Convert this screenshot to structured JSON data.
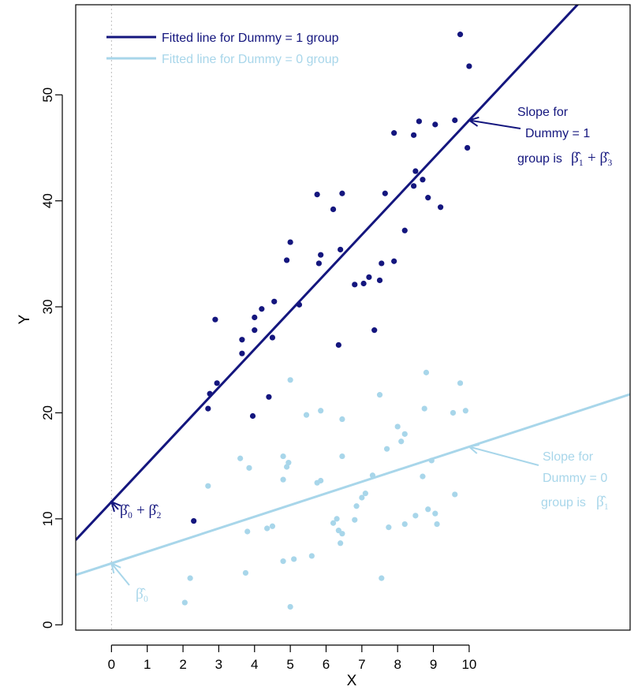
{
  "chart_data": {
    "type": "scatter",
    "title": "",
    "xlabel": "X",
    "ylabel": "Y",
    "xlim": [
      -1,
      14.5
    ],
    "ylim": [
      -0.5,
      58.5
    ],
    "x_ticks": [
      0,
      1,
      2,
      3,
      4,
      5,
      6,
      7,
      8,
      9,
      10
    ],
    "y_ticks": [
      0,
      10,
      20,
      30,
      40,
      50
    ],
    "grid": false,
    "legend_position": "top-left",
    "colors": {
      "group1": "#14167e",
      "group0": "#a8d6ea",
      "zero_line": "#bdbdbd"
    },
    "legend": [
      {
        "label": "Fitted line for Dummy = 1 group",
        "color": "#14167e"
      },
      {
        "label": "Fitted line for Dummy = 0 group",
        "color": "#a8d6ea"
      }
    ],
    "series": [
      {
        "name": "Dummy = 1",
        "color": "#14167e",
        "points": [
          [
            2.3,
            9.8
          ],
          [
            2.7,
            20.4
          ],
          [
            2.75,
            21.8
          ],
          [
            2.9,
            28.8
          ],
          [
            2.95,
            22.8
          ],
          [
            3.65,
            25.6
          ],
          [
            3.65,
            26.9
          ],
          [
            3.95,
            19.7
          ],
          [
            4.0,
            27.8
          ],
          [
            4.0,
            29.0
          ],
          [
            4.2,
            29.8
          ],
          [
            4.4,
            21.5
          ],
          [
            4.5,
            27.1
          ],
          [
            4.55,
            30.5
          ],
          [
            4.9,
            34.4
          ],
          [
            5.0,
            36.1
          ],
          [
            5.25,
            30.2
          ],
          [
            5.75,
            40.6
          ],
          [
            5.8,
            34.1
          ],
          [
            5.85,
            34.9
          ],
          [
            6.2,
            39.2
          ],
          [
            6.35,
            26.4
          ],
          [
            6.4,
            35.4
          ],
          [
            6.45,
            40.7
          ],
          [
            6.8,
            32.1
          ],
          [
            7.05,
            32.2
          ],
          [
            7.2,
            32.8
          ],
          [
            7.35,
            27.8
          ],
          [
            7.5,
            32.5
          ],
          [
            7.55,
            34.1
          ],
          [
            7.65,
            40.7
          ],
          [
            7.9,
            34.3
          ],
          [
            7.9,
            46.4
          ],
          [
            8.2,
            37.2
          ],
          [
            8.45,
            46.2
          ],
          [
            8.45,
            41.4
          ],
          [
            8.5,
            42.8
          ],
          [
            8.6,
            47.5
          ],
          [
            8.7,
            42.0
          ],
          [
            8.85,
            40.3
          ],
          [
            9.05,
            47.2
          ],
          [
            9.2,
            39.4
          ],
          [
            9.6,
            47.6
          ],
          [
            9.75,
            55.7
          ],
          [
            9.95,
            45.0
          ],
          [
            10.0,
            52.7
          ]
        ],
        "fit": {
          "intercept": 11.6,
          "slope": 3.6
        }
      },
      {
        "name": "Dummy = 0",
        "color": "#a8d6ea",
        "points": [
          [
            2.05,
            2.1
          ],
          [
            2.2,
            4.4
          ],
          [
            2.7,
            13.1
          ],
          [
            3.6,
            15.7
          ],
          [
            3.75,
            4.9
          ],
          [
            3.8,
            8.8
          ],
          [
            3.85,
            14.8
          ],
          [
            4.35,
            9.1
          ],
          [
            4.5,
            9.3
          ],
          [
            4.8,
            6.0
          ],
          [
            4.8,
            13.7
          ],
          [
            4.8,
            15.9
          ],
          [
            4.9,
            14.9
          ],
          [
            4.95,
            15.3
          ],
          [
            5.0,
            1.7
          ],
          [
            5.0,
            23.1
          ],
          [
            5.1,
            6.2
          ],
          [
            5.45,
            19.8
          ],
          [
            5.6,
            6.5
          ],
          [
            5.75,
            13.4
          ],
          [
            5.85,
            13.6
          ],
          [
            5.85,
            20.2
          ],
          [
            6.2,
            9.6
          ],
          [
            6.3,
            10.0
          ],
          [
            6.35,
            8.9
          ],
          [
            6.4,
            7.7
          ],
          [
            6.45,
            19.4
          ],
          [
            6.45,
            15.9
          ],
          [
            6.45,
            8.6
          ],
          [
            6.8,
            9.9
          ],
          [
            6.85,
            11.2
          ],
          [
            7.0,
            12.0
          ],
          [
            7.1,
            12.4
          ],
          [
            7.3,
            14.1
          ],
          [
            7.5,
            21.7
          ],
          [
            7.55,
            4.4
          ],
          [
            7.7,
            16.6
          ],
          [
            7.75,
            9.2
          ],
          [
            8.0,
            18.7
          ],
          [
            8.1,
            17.3
          ],
          [
            8.2,
            18.0
          ],
          [
            8.2,
            9.5
          ],
          [
            8.5,
            10.3
          ],
          [
            8.7,
            14.0
          ],
          [
            8.75,
            20.4
          ],
          [
            8.8,
            23.8
          ],
          [
            8.85,
            10.9
          ],
          [
            8.95,
            15.5
          ],
          [
            9.05,
            10.5
          ],
          [
            9.1,
            9.5
          ],
          [
            9.55,
            20.0
          ],
          [
            9.6,
            12.3
          ],
          [
            9.75,
            22.8
          ],
          [
            9.9,
            20.2
          ]
        ],
        "fit": {
          "intercept": 5.8,
          "slope": 1.1
        }
      }
    ],
    "annotations": {
      "slope_dummy1": {
        "lines": [
          "Slope for",
          "Dummy = 1",
          "group is"
        ],
        "symbol": "β̂₁ + β̂₃",
        "color": "#14167e",
        "arrow_to": [
          10.0,
          47.6
        ]
      },
      "slope_dummy0": {
        "lines": [
          "Slope for",
          "Dummy = 0",
          "group is"
        ],
        "symbol": "β̂₁",
        "color": "#a8d6ea",
        "arrow_to": [
          10.0,
          16.8
        ]
      },
      "intercept_dummy1": {
        "symbol": "β̂₀ + β̂₂",
        "color": "#14167e",
        "arrow_to": [
          0,
          11.6
        ]
      },
      "intercept_dummy0": {
        "symbol": "β̂₀",
        "color": "#a8d6ea",
        "arrow_to": [
          0,
          5.8
        ]
      }
    }
  }
}
